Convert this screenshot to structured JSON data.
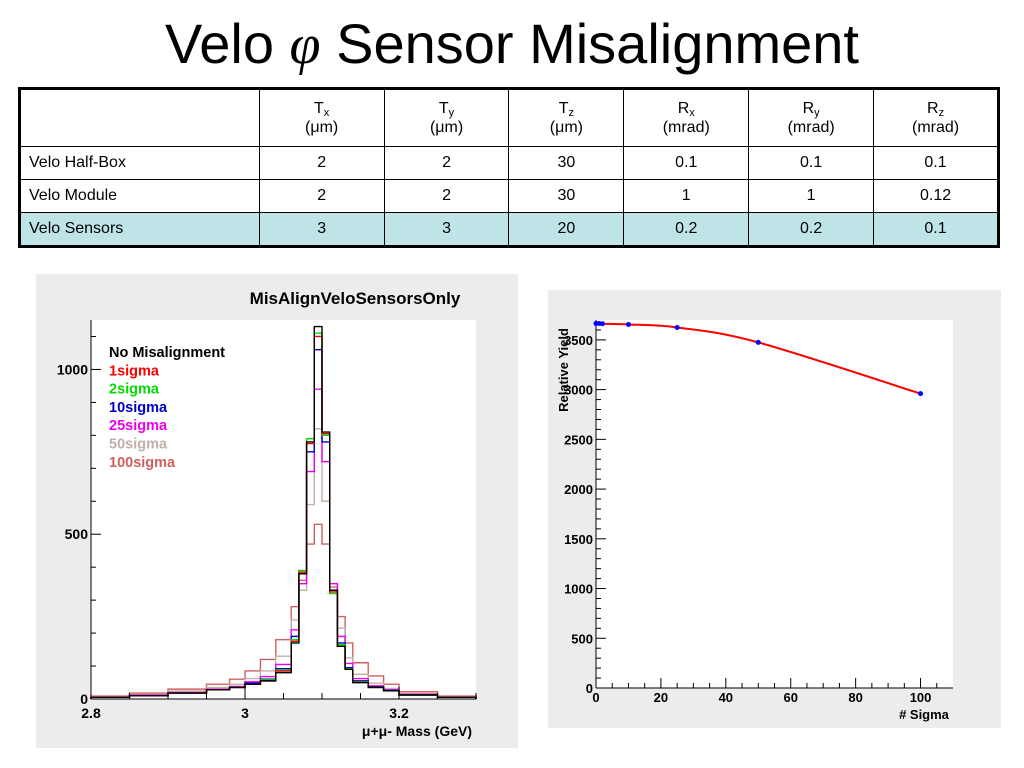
{
  "title": {
    "prefix": "Velo",
    "symbol": "φ",
    "suffix": "Sensor Misalignment"
  },
  "table": {
    "columns": [
      {
        "name": "T",
        "sub": "x",
        "unit": "(μm)"
      },
      {
        "name": "T",
        "sub": "y",
        "unit": "(μm)"
      },
      {
        "name": "T",
        "sub": "z",
        "unit": "(μm)"
      },
      {
        "name": "R",
        "sub": "x",
        "unit": "(mrad)"
      },
      {
        "name": "R",
        "sub": "y",
        "unit": "(mrad)"
      },
      {
        "name": "R",
        "sub": "z",
        "unit": "(mrad)"
      }
    ],
    "rows": [
      {
        "label": "Velo Half-Box",
        "values": [
          "2",
          "2",
          "30",
          "0.1",
          "0.1",
          "0.1"
        ],
        "highlight": false
      },
      {
        "label": "Velo Module",
        "values": [
          "2",
          "2",
          "30",
          "1",
          "1",
          "0.12"
        ],
        "highlight": false
      },
      {
        "label": "Velo Sensors",
        "values": [
          "3",
          "3",
          "20",
          "0.2",
          "0.2",
          "0.1"
        ],
        "highlight": true
      }
    ],
    "highlight_color": "#bfe4e8"
  },
  "chart_data": [
    {
      "type": "line",
      "subtype": "step-histogram",
      "title": "MisAlignVeloSensorsOnly",
      "xlabel": "μ+μ- Mass (GeV)",
      "ylabel": "",
      "xlim": [
        2.8,
        3.3
      ],
      "ylim": [
        0,
        1150
      ],
      "x_ticks": [
        "2.8",
        "3",
        "3.2"
      ],
      "y_ticks": [
        "0",
        "500",
        "1000"
      ],
      "grid": false,
      "legend_position": "top-left",
      "bin_edges": [
        2.8,
        2.85,
        2.9,
        2.95,
        2.98,
        3.0,
        3.02,
        3.04,
        3.06,
        3.07,
        3.08,
        3.09,
        3.1,
        3.11,
        3.12,
        3.13,
        3.14,
        3.16,
        3.18,
        3.2,
        3.25,
        3.3
      ],
      "series": [
        {
          "name": "No Misalignment",
          "color": "#000000",
          "values": [
            5,
            10,
            18,
            28,
            35,
            45,
            55,
            80,
            170,
            380,
            780,
            1130,
            810,
            330,
            160,
            90,
            50,
            35,
            25,
            12,
            5
          ]
        },
        {
          "name": "1sigma",
          "color": "#ff0000",
          "values": [
            5,
            10,
            18,
            28,
            35,
            45,
            55,
            85,
            175,
            385,
            775,
            1100,
            805,
            325,
            160,
            90,
            50,
            35,
            25,
            12,
            5
          ]
        },
        {
          "name": "2sigma",
          "color": "#00dd00",
          "values": [
            5,
            10,
            18,
            28,
            35,
            45,
            58,
            88,
            180,
            390,
            790,
            1110,
            800,
            320,
            165,
            92,
            52,
            35,
            25,
            12,
            5
          ]
        },
        {
          "name": "10sigma",
          "color": "#0000cc",
          "values": [
            5,
            10,
            18,
            28,
            35,
            48,
            60,
            92,
            190,
            380,
            750,
            1060,
            780,
            330,
            170,
            95,
            55,
            37,
            26,
            13,
            5
          ]
        },
        {
          "name": "25sigma",
          "color": "#ee00ee",
          "values": [
            6,
            12,
            20,
            30,
            38,
            52,
            68,
            105,
            210,
            350,
            690,
            940,
            720,
            350,
            190,
            108,
            62,
            40,
            28,
            14,
            6
          ]
        },
        {
          "name": "50sigma",
          "color": "#c0b0a8",
          "values": [
            7,
            14,
            24,
            35,
            45,
            62,
            85,
            130,
            240,
            330,
            590,
            820,
            600,
            350,
            215,
            125,
            75,
            48,
            32,
            16,
            7
          ]
        },
        {
          "name": "100sigma",
          "color": "#d06060",
          "values": [
            9,
            18,
            30,
            45,
            60,
            85,
            120,
            180,
            280,
            360,
            470,
            530,
            470,
            340,
            250,
            170,
            110,
            70,
            45,
            22,
            9
          ]
        }
      ]
    },
    {
      "type": "scatter",
      "title": "",
      "xlabel": "# Sigma",
      "ylabel": "Relative Yield",
      "xlim": [
        0,
        110
      ],
      "ylim": [
        0,
        3700
      ],
      "x_ticks": [
        "0",
        "20",
        "40",
        "60",
        "80",
        "100"
      ],
      "y_ticks": [
        "0",
        "500",
        "1000",
        "1500",
        "2000",
        "2500",
        "3000",
        "3500"
      ],
      "grid": false,
      "fit_color": "#ff0000",
      "point_color": "#0000ff",
      "series": [
        {
          "name": "",
          "x": [
            0,
            1,
            2,
            10,
            25,
            50,
            100
          ],
          "y": [
            3665,
            3665,
            3662,
            3655,
            3625,
            3475,
            2960
          ]
        }
      ]
    }
  ]
}
